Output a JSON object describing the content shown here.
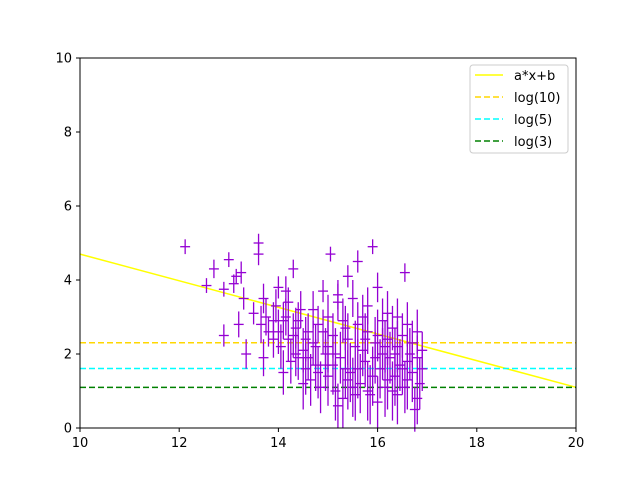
{
  "chart_data": {
    "type": "scatter",
    "xlim": [
      10,
      20
    ],
    "ylim": [
      0,
      10
    ],
    "xticks": [
      "10",
      "12",
      "14",
      "16",
      "18",
      "20"
    ],
    "yticks": [
      "0",
      "2",
      "4",
      "6",
      "8",
      "10"
    ],
    "grid": false,
    "legend_position": "top-right",
    "lines": [
      {
        "name": "a*x+b",
        "kind": "fit",
        "style": "solid",
        "color": "#ffff00",
        "x": [
          10,
          20
        ],
        "y": [
          4.7,
          1.1
        ]
      },
      {
        "name": "log(10)",
        "kind": "hline",
        "style": "dashed",
        "color": "#ffd700",
        "y": 2.303
      },
      {
        "name": "log(5)",
        "kind": "hline",
        "style": "dashed",
        "color": "#00ffff",
        "y": 1.609
      },
      {
        "name": "log(3)",
        "kind": "hline",
        "style": "dashed",
        "color": "#008000",
        "y": 1.099
      }
    ],
    "errorbar_series": {
      "color": "#9400d3",
      "x_err": 0.1,
      "points": [
        [
          12.12,
          4.9,
          0.2
        ],
        [
          12.55,
          3.85,
          0.2
        ],
        [
          12.7,
          4.3,
          0.25
        ],
        [
          12.9,
          3.75,
          0.2
        ],
        [
          12.9,
          2.5,
          0.3
        ],
        [
          13.0,
          4.55,
          0.2
        ],
        [
          13.1,
          3.9,
          0.25
        ],
        [
          13.15,
          4.1,
          0.2
        ],
        [
          13.2,
          2.8,
          0.35
        ],
        [
          13.25,
          4.2,
          0.3
        ],
        [
          13.3,
          3.5,
          0.3
        ],
        [
          13.35,
          2.0,
          0.4
        ],
        [
          13.5,
          3.1,
          0.3
        ],
        [
          13.6,
          5.0,
          0.25
        ],
        [
          13.6,
          4.7,
          0.3
        ],
        [
          13.65,
          2.8,
          0.5
        ],
        [
          13.7,
          3.5,
          0.4
        ],
        [
          13.75,
          3.0,
          0.5
        ],
        [
          13.8,
          2.6,
          0.4
        ],
        [
          13.9,
          2.4,
          0.5
        ],
        [
          13.95,
          3.3,
          0.45
        ],
        [
          14.0,
          3.8,
          0.3
        ],
        [
          14.05,
          2.2,
          0.6
        ],
        [
          14.1,
          2.9,
          0.5
        ],
        [
          14.15,
          3.7,
          0.4
        ],
        [
          14.2,
          2.4,
          0.6
        ],
        [
          14.25,
          1.8,
          0.6
        ],
        [
          14.3,
          4.3,
          0.25
        ],
        [
          14.35,
          2.7,
          0.55
        ],
        [
          14.4,
          1.9,
          0.6
        ],
        [
          14.45,
          3.2,
          0.5
        ],
        [
          14.5,
          2.1,
          0.6
        ],
        [
          14.55,
          1.6,
          0.7
        ],
        [
          14.6,
          2.6,
          0.5
        ],
        [
          14.65,
          1.3,
          0.7
        ],
        [
          14.7,
          2.3,
          0.6
        ],
        [
          14.75,
          1.7,
          0.7
        ],
        [
          14.8,
          2.8,
          0.5
        ],
        [
          14.85,
          1.1,
          0.7
        ],
        [
          14.9,
          3.7,
          0.3
        ],
        [
          14.95,
          2.0,
          0.7
        ],
        [
          15.0,
          1.4,
          0.8
        ],
        [
          15.05,
          4.7,
          0.2
        ],
        [
          15.1,
          2.5,
          0.6
        ],
        [
          15.15,
          1.0,
          0.8
        ],
        [
          15.2,
          3.4,
          0.5
        ],
        [
          15.25,
          1.9,
          0.7
        ],
        [
          15.3,
          0.8,
          0.8
        ],
        [
          15.35,
          2.7,
          0.6
        ],
        [
          15.4,
          4.1,
          0.3
        ],
        [
          15.45,
          1.5,
          0.8
        ],
        [
          15.5,
          3.5,
          0.5
        ],
        [
          15.55,
          2.2,
          0.7
        ],
        [
          15.6,
          4.5,
          0.3
        ],
        [
          15.65,
          1.2,
          0.8
        ],
        [
          15.7,
          3.0,
          0.6
        ],
        [
          15.75,
          1.8,
          0.7
        ],
        [
          15.8,
          2.6,
          0.6
        ],
        [
          15.85,
          0.9,
          0.8
        ],
        [
          15.9,
          4.9,
          0.2
        ],
        [
          15.95,
          2.3,
          0.7
        ],
        [
          16.0,
          3.8,
          0.4
        ],
        [
          16.05,
          1.6,
          0.8
        ],
        [
          16.1,
          2.9,
          0.6
        ],
        [
          16.15,
          1.1,
          0.8
        ],
        [
          16.2,
          2.4,
          0.7
        ],
        [
          16.25,
          1.9,
          0.7
        ],
        [
          16.3,
          2.7,
          0.6
        ],
        [
          16.35,
          1.4,
          0.8
        ],
        [
          16.4,
          2.2,
          0.7
        ],
        [
          16.45,
          1.7,
          0.7
        ],
        [
          16.5,
          2.5,
          0.6
        ],
        [
          16.55,
          4.2,
          0.25
        ],
        [
          16.6,
          1.3,
          0.8
        ],
        [
          16.65,
          2.0,
          0.7
        ],
        [
          16.7,
          1.5,
          0.8
        ],
        [
          16.75,
          0.5,
          0.6
        ],
        [
          16.8,
          1.9,
          0.6
        ],
        [
          16.85,
          1.2,
          0.7
        ],
        [
          16.9,
          2.1,
          0.5
        ],
        [
          14.1,
          1.5,
          0.6
        ],
        [
          14.3,
          2.5,
          0.6
        ],
        [
          14.5,
          1.2,
          0.7
        ],
        [
          14.7,
          3.2,
          0.5
        ],
        [
          14.9,
          2.6,
          0.6
        ],
        [
          15.1,
          1.7,
          0.8
        ],
        [
          15.3,
          2.9,
          0.6
        ],
        [
          15.5,
          1.1,
          0.8
        ],
        [
          15.7,
          2.1,
          0.7
        ],
        [
          15.9,
          1.4,
          0.8
        ],
        [
          16.1,
          2.0,
          0.7
        ],
        [
          16.3,
          1.0,
          0.8
        ],
        [
          16.5,
          1.6,
          0.7
        ],
        [
          16.7,
          2.3,
          0.6
        ],
        [
          16.9,
          1.6,
          0.6
        ],
        [
          15.0,
          3.0,
          0.6
        ],
        [
          15.2,
          0.6,
          0.6
        ],
        [
          15.4,
          2.4,
          0.7
        ],
        [
          15.6,
          1.6,
          0.8
        ],
        [
          15.8,
          3.3,
          0.5
        ],
        [
          16.0,
          0.7,
          0.7
        ],
        [
          16.2,
          3.1,
          0.6
        ],
        [
          16.4,
          0.9,
          0.8
        ],
        [
          16.6,
          2.8,
          0.6
        ],
        [
          16.8,
          0.8,
          0.7
        ],
        [
          14.2,
          3.4,
          0.4
        ],
        [
          14.4,
          2.9,
          0.5
        ],
        [
          14.6,
          1.9,
          0.6
        ],
        [
          14.8,
          1.5,
          0.7
        ],
        [
          15.0,
          2.2,
          0.7
        ],
        [
          15.2,
          3.6,
          0.4
        ],
        [
          15.4,
          1.3,
          0.8
        ],
        [
          15.6,
          2.8,
          0.6
        ],
        [
          15.8,
          1.0,
          0.8
        ],
        [
          16.0,
          2.5,
          0.7
        ],
        [
          16.2,
          1.3,
          0.8
        ],
        [
          16.4,
          3.0,
          0.5
        ],
        [
          16.6,
          1.8,
          0.7
        ],
        [
          16.8,
          2.6,
          0.6
        ],
        [
          13.7,
          1.9,
          0.5
        ],
        [
          13.9,
          2.9,
          0.5
        ],
        [
          14.0,
          2.6,
          0.6
        ],
        [
          14.15,
          3.0,
          0.5
        ],
        [
          14.35,
          2.0,
          0.6
        ],
        [
          14.55,
          2.4,
          0.6
        ],
        [
          14.75,
          2.2,
          0.6
        ],
        [
          14.95,
          1.7,
          0.7
        ],
        [
          15.15,
          2.0,
          0.7
        ],
        [
          15.35,
          1.6,
          0.8
        ],
        [
          15.55,
          0.9,
          0.7
        ],
        [
          15.75,
          2.4,
          0.7
        ],
        [
          15.95,
          1.9,
          0.7
        ],
        [
          16.15,
          2.2,
          0.7
        ],
        [
          16.35,
          2.0,
          0.7
        ],
        [
          16.55,
          1.1,
          0.7
        ]
      ]
    }
  }
}
